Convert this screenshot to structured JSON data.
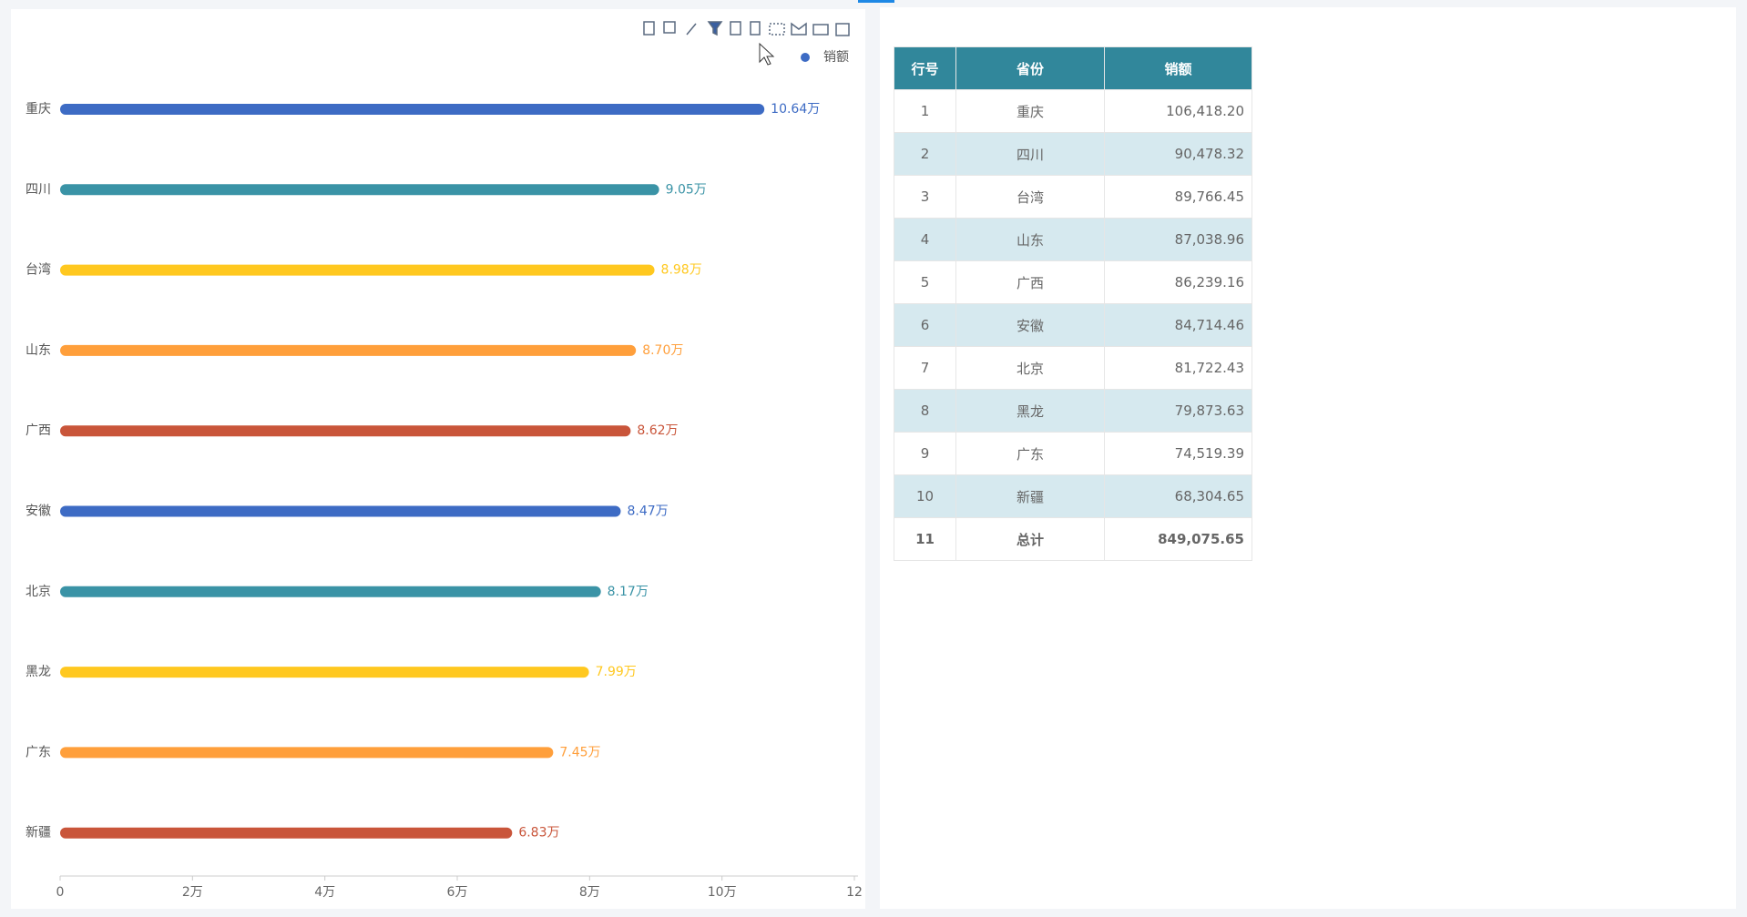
{
  "chart_data": {
    "type": "hbar",
    "categories": [
      "重庆",
      "四川",
      "台湾",
      "山东",
      "广西",
      "安徽",
      "北京",
      "黑龙",
      "广东",
      "新疆"
    ],
    "series": [
      {
        "name": "销额",
        "color": "#3d6bc4",
        "values": [
          10.64,
          9.05,
          8.98,
          8.7,
          8.62,
          8.47,
          8.17,
          7.99,
          7.45,
          6.83
        ],
        "value_labels": [
          "10.64万",
          "9.05万",
          "8.98万",
          "8.70万",
          "8.62万",
          "8.47万",
          "8.17万",
          "7.99万",
          "7.45万",
          "6.83万"
        ],
        "bar_colors": [
          "#3d6bc4",
          "#3a93a6",
          "#ffc81f",
          "#ff9f3b",
          "#c9553a",
          "#3d6bc4",
          "#3a93a6",
          "#ffc81f",
          "#ff9f3b",
          "#c9553a"
        ]
      }
    ],
    "xlim": [
      0,
      12
    ],
    "xticks": [
      0,
      {
        "value": 2,
        "label": "2万"
      },
      {
        "value": 4,
        "label": "4万"
      },
      {
        "value": 6,
        "label": "6万"
      },
      {
        "value": 8,
        "label": "8万"
      },
      {
        "value": 10,
        "label": "10万"
      },
      12
    ],
    "legend": "top-right"
  },
  "table": {
    "header": [
      "行号",
      "省份",
      "销额"
    ],
    "rows": [
      [
        "1",
        "重庆",
        "106,418.20"
      ],
      [
        "2",
        "四川",
        "90,478.32"
      ],
      [
        "3",
        "台湾",
        "89,766.45"
      ],
      [
        "4",
        "山东",
        "87,038.96"
      ],
      [
        "5",
        "广西",
        "86,239.16"
      ],
      [
        "6",
        "安徽",
        "84,714.46"
      ],
      [
        "7",
        "北京",
        "81,722.43"
      ],
      [
        "8",
        "黑龙",
        "79,873.63"
      ],
      [
        "9",
        "广东",
        "74,519.39"
      ],
      [
        "10",
        "新疆",
        "68,304.65"
      ],
      [
        "11",
        "总计",
        "849,075.65"
      ]
    ]
  }
}
